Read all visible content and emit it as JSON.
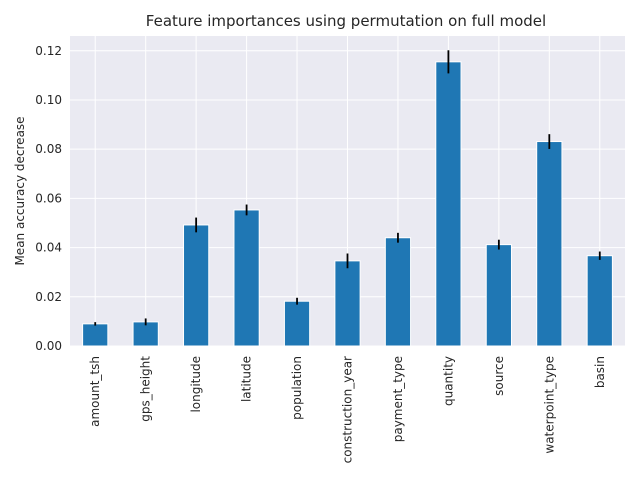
{
  "chart_data": {
    "type": "bar",
    "title": "Feature importances using permutation on full model",
    "xlabel": "",
    "ylabel": "Mean accuracy decrease",
    "categories": [
      "amount_tsh",
      "gps_height",
      "longitude",
      "latitude",
      "population",
      "construction_year",
      "payment_type",
      "quantity",
      "source",
      "waterpoint_type",
      "basin"
    ],
    "values": [
      0.009,
      0.0098,
      0.0492,
      0.0553,
      0.0182,
      0.0346,
      0.044,
      0.1155,
      0.0412,
      0.0831,
      0.0367
    ],
    "errors": [
      0.0007,
      0.0014,
      0.003,
      0.0022,
      0.0014,
      0.003,
      0.002,
      0.0047,
      0.002,
      0.003,
      0.0017
    ],
    "ylim": [
      0,
      0.126
    ],
    "yticks": [
      "0.00",
      "0.02",
      "0.04",
      "0.06",
      "0.08",
      "0.10",
      "0.12"
    ],
    "grid": true,
    "legend": "none",
    "colors": {
      "bar": "#1f77b4",
      "error": "#000000",
      "background": "#eaeaf2",
      "grid": "#ffffff"
    }
  }
}
